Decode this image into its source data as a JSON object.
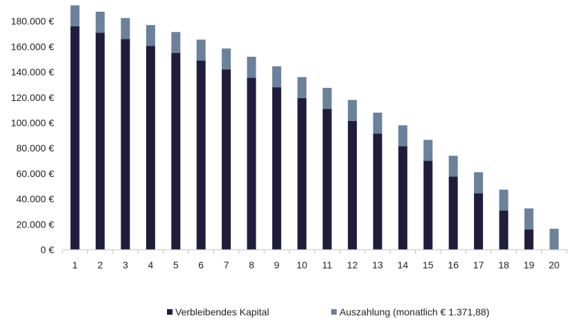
{
  "chart_data": {
    "type": "bar",
    "stacked": true,
    "categories": [
      "1",
      "2",
      "3",
      "4",
      "5",
      "6",
      "7",
      "8",
      "9",
      "10",
      "11",
      "12",
      "13",
      "14",
      "15",
      "16",
      "17",
      "18",
      "19",
      "20"
    ],
    "series": [
      {
        "name": "Verbleibendes Kapital",
        "color": "#1e1e3c",
        "values": [
          176000,
          171000,
          166000,
          160500,
          155000,
          149000,
          142000,
          135500,
          128000,
          119500,
          111000,
          101500,
          91500,
          81500,
          70000,
          57500,
          44500,
          30800,
          16000,
          0
        ]
      },
      {
        "name": "Auszahlung (monatlich € 1.371,88)",
        "color": "#6b819c",
        "values": [
          16500,
          16500,
          16500,
          16500,
          16500,
          16500,
          16500,
          16500,
          16500,
          16500,
          16500,
          16500,
          16500,
          16500,
          16500,
          16500,
          16500,
          16500,
          16500,
          16500
        ]
      }
    ],
    "y_ticks": [
      "0 €",
      "20.000 €",
      "40.000 €",
      "60.000 €",
      "80.000 €",
      "100.000 €",
      "120.000 €",
      "140.000 €",
      "160.000 €",
      "180.000 €"
    ],
    "ylim": [
      0,
      195000
    ],
    "grid": false,
    "legend_position": "bottom"
  }
}
